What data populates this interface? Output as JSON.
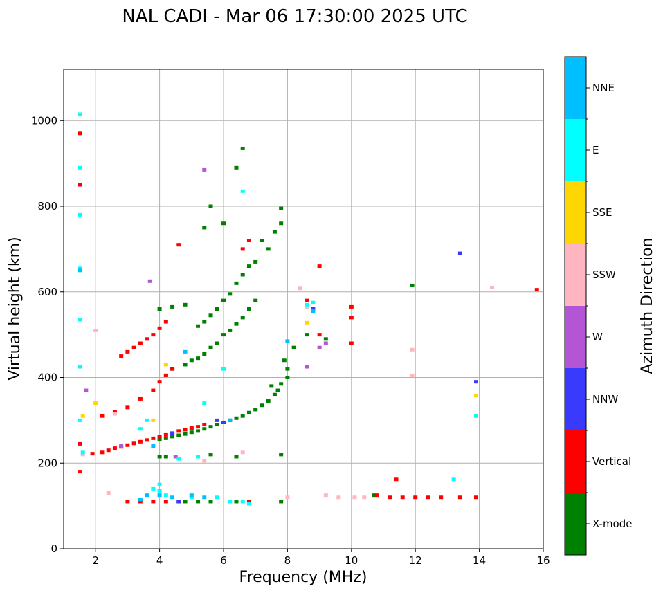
{
  "chart_data": {
    "type": "scatter",
    "title": "NAL CADI - Mar 06 17:30:00 2025 UTC",
    "xlabel": "Frequency (MHz)",
    "ylabel": "Virtual height (km)",
    "xlim": [
      1,
      16
    ],
    "ylim": [
      0,
      1120
    ],
    "xticks": [
      2,
      4,
      6,
      8,
      10,
      12,
      14,
      16
    ],
    "yticks": [
      0,
      200,
      400,
      600,
      800,
      1000
    ],
    "grid": true,
    "colorbar": {
      "title": "Azimuth Direction",
      "categories": [
        {
          "name": "X-mode",
          "color": "#008000"
        },
        {
          "name": "Vertical",
          "color": "#ff0000"
        },
        {
          "name": "NNW",
          "color": "#3a3aff"
        },
        {
          "name": "W",
          "color": "#b455d6"
        },
        {
          "name": "SSW",
          "color": "#ffb6c1"
        },
        {
          "name": "SSE",
          "color": "#ffd700"
        },
        {
          "name": "E",
          "color": "#00ffff"
        },
        {
          "name": "NNE",
          "color": "#00bfff"
        }
      ]
    },
    "series": [
      {
        "name": "X-mode",
        "points": [
          [
            4.0,
            255
          ],
          [
            4.2,
            258
          ],
          [
            4.4,
            262
          ],
          [
            4.6,
            265
          ],
          [
            4.8,
            268
          ],
          [
            5.0,
            272
          ],
          [
            5.2,
            275
          ],
          [
            5.4,
            280
          ],
          [
            5.6,
            285
          ],
          [
            5.8,
            290
          ],
          [
            6.0,
            295
          ],
          [
            6.2,
            300
          ],
          [
            6.4,
            305
          ],
          [
            6.6,
            310
          ],
          [
            6.8,
            318
          ],
          [
            7.0,
            325
          ],
          [
            7.2,
            335
          ],
          [
            7.4,
            345
          ],
          [
            7.6,
            360
          ],
          [
            7.8,
            385
          ],
          [
            8.0,
            400
          ],
          [
            4.0,
            215
          ],
          [
            4.2,
            215
          ],
          [
            4.6,
            110
          ],
          [
            4.8,
            110
          ],
          [
            5.2,
            110
          ],
          [
            5.6,
            110
          ],
          [
            6.4,
            110
          ],
          [
            7.8,
            110
          ],
          [
            7.8,
            220
          ],
          [
            6.4,
            215
          ],
          [
            5.6,
            220
          ],
          [
            4.2,
            405
          ],
          [
            4.4,
            420
          ],
          [
            4.8,
            430
          ],
          [
            5.0,
            440
          ],
          [
            5.2,
            445
          ],
          [
            5.4,
            455
          ],
          [
            5.6,
            470
          ],
          [
            5.8,
            480
          ],
          [
            6.0,
            500
          ],
          [
            6.2,
            510
          ],
          [
            6.4,
            525
          ],
          [
            6.6,
            540
          ],
          [
            6.8,
            560
          ],
          [
            7.0,
            580
          ],
          [
            4.0,
            560
          ],
          [
            4.4,
            565
          ],
          [
            4.8,
            570
          ],
          [
            5.2,
            520
          ],
          [
            5.4,
            530
          ],
          [
            5.6,
            545
          ],
          [
            5.8,
            560
          ],
          [
            6.0,
            580
          ],
          [
            6.2,
            595
          ],
          [
            6.4,
            620
          ],
          [
            6.6,
            640
          ],
          [
            6.8,
            660
          ],
          [
            7.0,
            670
          ],
          [
            5.4,
            750
          ],
          [
            5.6,
            800
          ],
          [
            6.0,
            760
          ],
          [
            6.6,
            935
          ],
          [
            6.4,
            890
          ],
          [
            7.8,
            795
          ],
          [
            7.8,
            760
          ],
          [
            7.6,
            740
          ],
          [
            7.2,
            720
          ],
          [
            7.4,
            700
          ],
          [
            7.5,
            380
          ],
          [
            7.7,
            370
          ],
          [
            7.9,
            440
          ],
          [
            8.0,
            420
          ],
          [
            8.2,
            470
          ],
          [
            8.6,
            500
          ],
          [
            9.2,
            490
          ],
          [
            10.7,
            125
          ],
          [
            11.9,
            615
          ]
        ]
      },
      {
        "name": "Vertical",
        "points": [
          [
            1.5,
            970
          ],
          [
            1.5,
            850
          ],
          [
            1.5,
            245
          ],
          [
            1.5,
            180
          ],
          [
            1.9,
            222
          ],
          [
            2.2,
            225
          ],
          [
            2.4,
            230
          ],
          [
            2.6,
            235
          ],
          [
            2.8,
            238
          ],
          [
            3.0,
            242
          ],
          [
            3.2,
            246
          ],
          [
            3.4,
            250
          ],
          [
            3.6,
            254
          ],
          [
            3.8,
            258
          ],
          [
            4.0,
            262
          ],
          [
            4.2,
            266
          ],
          [
            4.4,
            270
          ],
          [
            4.6,
            275
          ],
          [
            4.8,
            278
          ],
          [
            5.0,
            282
          ],
          [
            5.2,
            285
          ],
          [
            5.4,
            290
          ],
          [
            2.2,
            310
          ],
          [
            2.6,
            320
          ],
          [
            3.0,
            330
          ],
          [
            3.4,
            350
          ],
          [
            3.8,
            370
          ],
          [
            4.0,
            390
          ],
          [
            4.2,
            405
          ],
          [
            4.4,
            420
          ],
          [
            2.8,
            450
          ],
          [
            3.0,
            460
          ],
          [
            3.2,
            470
          ],
          [
            3.4,
            480
          ],
          [
            3.6,
            490
          ],
          [
            3.8,
            500
          ],
          [
            4.0,
            515
          ],
          [
            4.2,
            530
          ],
          [
            3.0,
            110
          ],
          [
            3.4,
            110
          ],
          [
            3.8,
            110
          ],
          [
            4.2,
            110
          ],
          [
            6.8,
            110
          ],
          [
            4.6,
            710
          ],
          [
            6.6,
            700
          ],
          [
            6.8,
            720
          ],
          [
            8.6,
            580
          ],
          [
            9.0,
            660
          ],
          [
            9.0,
            500
          ],
          [
            10.0,
            565
          ],
          [
            10.0,
            540
          ],
          [
            10.0,
            480
          ],
          [
            10.8,
            125
          ],
          [
            11.2,
            120
          ],
          [
            11.6,
            120
          ],
          [
            12.0,
            120
          ],
          [
            12.4,
            120
          ],
          [
            12.8,
            120
          ],
          [
            13.4,
            120
          ],
          [
            13.9,
            120
          ],
          [
            15.8,
            605
          ],
          [
            11.4,
            162
          ]
        ]
      },
      {
        "name": "NNW",
        "points": [
          [
            13.4,
            690
          ],
          [
            13.9,
            390
          ],
          [
            5.8,
            300
          ],
          [
            6.0,
            295
          ],
          [
            4.4,
            270
          ],
          [
            8.8,
            560
          ],
          [
            4.6,
            110
          ],
          [
            6.2,
            300
          ]
        ]
      },
      {
        "name": "W",
        "points": [
          [
            3.7,
            625
          ],
          [
            9.2,
            480
          ],
          [
            9.0,
            470
          ],
          [
            8.6,
            425
          ],
          [
            1.7,
            370
          ],
          [
            4.5,
            215
          ],
          [
            5.4,
            885
          ],
          [
            2.8,
            240
          ]
        ]
      },
      {
        "name": "SSW",
        "points": [
          [
            9.2,
            125
          ],
          [
            9.6,
            120
          ],
          [
            10.1,
            120
          ],
          [
            10.4,
            120
          ],
          [
            11.9,
            465
          ],
          [
            11.9,
            405
          ],
          [
            14.4,
            610
          ],
          [
            8.4,
            608
          ],
          [
            8.6,
            565
          ],
          [
            6.6,
            225
          ],
          [
            2.0,
            510
          ],
          [
            2.6,
            315
          ],
          [
            1.6,
            220
          ],
          [
            2.4,
            130
          ],
          [
            8.0,
            120
          ],
          [
            5.4,
            205
          ]
        ]
      },
      {
        "name": "SSE",
        "points": [
          [
            13.9,
            358
          ],
          [
            8.6,
            528
          ],
          [
            1.6,
            310
          ],
          [
            2.0,
            340
          ],
          [
            3.8,
            300
          ],
          [
            4.2,
            430
          ]
        ]
      },
      {
        "name": "E",
        "points": [
          [
            1.5,
            1015
          ],
          [
            1.5,
            890
          ],
          [
            1.5,
            780
          ],
          [
            1.5,
            655
          ],
          [
            1.5,
            535
          ],
          [
            1.5,
            425
          ],
          [
            1.5,
            300
          ],
          [
            1.6,
            225
          ],
          [
            3.4,
            280
          ],
          [
            3.6,
            300
          ],
          [
            4.0,
            150
          ],
          [
            4.0,
            135
          ],
          [
            4.2,
            125
          ],
          [
            3.8,
            140
          ],
          [
            4.6,
            210
          ],
          [
            5.2,
            215
          ],
          [
            5.8,
            120
          ],
          [
            6.2,
            110
          ],
          [
            6.6,
            110
          ],
          [
            6.8,
            105
          ],
          [
            5.0,
            120
          ],
          [
            6.6,
            835
          ],
          [
            8.6,
            570
          ],
          [
            8.8,
            575
          ],
          [
            5.4,
            340
          ],
          [
            6.0,
            420
          ],
          [
            13.9,
            310
          ],
          [
            13.2,
            162
          ]
        ]
      },
      {
        "name": "NNE",
        "points": [
          [
            3.6,
            125
          ],
          [
            3.4,
            115
          ],
          [
            4.0,
            125
          ],
          [
            5.0,
            125
          ],
          [
            5.4,
            120
          ],
          [
            4.4,
            120
          ],
          [
            6.2,
            300
          ],
          [
            8.0,
            485
          ],
          [
            8.8,
            555
          ],
          [
            4.8,
            460
          ],
          [
            1.5,
            650
          ],
          [
            3.8,
            240
          ]
        ]
      }
    ]
  }
}
